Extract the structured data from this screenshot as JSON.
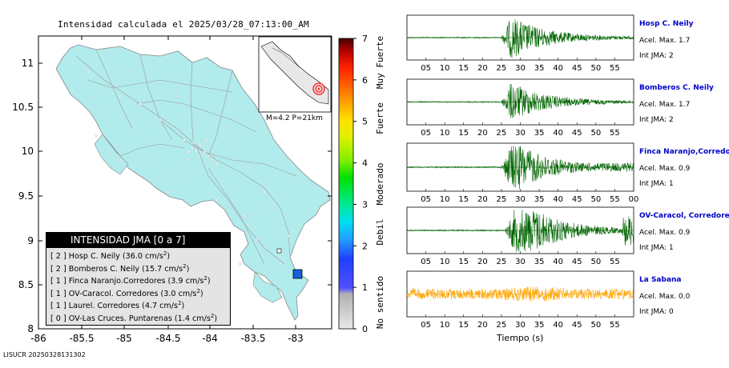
{
  "map": {
    "title": "Intensidad calculada el 2025/03/28_07:13:00_AM",
    "x_ticks": [
      "-86",
      "-85.5",
      "-85",
      "-84.5",
      "-84",
      "-83.5",
      "-83"
    ],
    "y_ticks": [
      "11",
      "10.5",
      "10",
      "9.5",
      "9",
      "8.5",
      "8"
    ],
    "inset_label": "M=4.2 P=21km",
    "land_color": "#b2ebec",
    "sea_color": "#ffffff",
    "station_color": "#1560d6"
  },
  "scale": {
    "ticks": [
      "7",
      "6",
      "5",
      "4",
      "3",
      "2",
      "1",
      "0"
    ],
    "labels": [
      "Muy Fuerte",
      "Fuerte",
      "Moderado",
      "Debil",
      "No sentido"
    ]
  },
  "legend": {
    "title": "INTENSIDAD JMA [0 a 7]",
    "rows": [
      {
        "level": "[ 2 ]",
        "text": "Hosp C. Neily (36.0 cm/s",
        "unit_sup": "2",
        "close": ")"
      },
      {
        "level": "[ 2 ]",
        "text": "Bomberos C. Neily (15.7 cm/s",
        "unit_sup": "2",
        "close": ")"
      },
      {
        "level": "[ 1 ]",
        "text": "Finca Naranjo.Corredores (3.9 cm/s",
        "unit_sup": "2",
        "close": ")"
      },
      {
        "level": "[ 1 ]",
        "text": "OV-Caracol. Corredores (3.0 cm/s",
        "unit_sup": "2",
        "close": ")"
      },
      {
        "level": "[ 1 ]",
        "text": "Laurel. Corredores (4.7 cm/s",
        "unit_sup": "2",
        "close": ")"
      },
      {
        "level": "[ 0 ]",
        "text": "OV-Las Cruces. Puntarenas (1.4 cm/s",
        "unit_sup": "2",
        "close": ")"
      }
    ]
  },
  "chart_data": [
    {
      "type": "line",
      "name": "Hosp C. Neily",
      "accel_label": "Acel. Max. 1.7",
      "int_label": "Int JMA: 2",
      "color": "#006400",
      "x_ticks": [
        "05",
        "10",
        "15",
        "20",
        "25",
        "30",
        "35",
        "40",
        "45",
        "50",
        "55"
      ],
      "xlim": [
        0,
        60
      ],
      "onset": 25,
      "peak_time": 28,
      "relative_amplitude": 1.0
    },
    {
      "type": "line",
      "name": "Bomberos C. Neily",
      "accel_label": "Acel. Max. 1.7",
      "int_label": "Int JMA: 2",
      "color": "#006400",
      "x_ticks": [
        "05",
        "10",
        "15",
        "20",
        "25",
        "30",
        "35",
        "40",
        "45",
        "50",
        "55"
      ],
      "xlim": [
        0,
        60
      ],
      "onset": 25,
      "peak_time": 28,
      "relative_amplitude": 0.9
    },
    {
      "type": "line",
      "name": "Finca Naranjo,Corredores",
      "accel_label": "Acel. Max. 0.9",
      "int_label": "Int JMA: 1",
      "color": "#006400",
      "x_ticks": [
        "05",
        "10",
        "15",
        "20",
        "25",
        "30",
        "35",
        "40",
        "45",
        "50",
        "55",
        "00"
      ],
      "xlim": [
        0,
        60
      ],
      "onset": 25,
      "peak_time": 30,
      "relative_amplitude": 1.0
    },
    {
      "type": "line",
      "name": "OV-Caracol, Corredores",
      "accel_label": "Acel. Max. 0.9",
      "int_label": "Int JMA: 1",
      "color": "#006400",
      "x_ticks": [
        "05",
        "10",
        "15",
        "20",
        "25",
        "30",
        "35",
        "40",
        "45",
        "50",
        "55"
      ],
      "xlim": [
        0,
        60
      ],
      "onset": 26,
      "peak_time": 34,
      "relative_amplitude": 1.0
    },
    {
      "type": "line",
      "name": "La Sabana",
      "accel_label": "Acel. Max. 0.0",
      "int_label": "Int JMA: 0",
      "color": "#ffa500",
      "x_ticks": [
        "05",
        "10",
        "15",
        "20",
        "25",
        "30",
        "35",
        "40",
        "45",
        "50",
        "55"
      ],
      "xlim": [
        0,
        60
      ],
      "onset": 0,
      "peak_time": 34,
      "relative_amplitude": 1.0
    }
  ],
  "waveform_xlabel": "Tiempo (s)",
  "footer": "LISUCR 20250328131302"
}
